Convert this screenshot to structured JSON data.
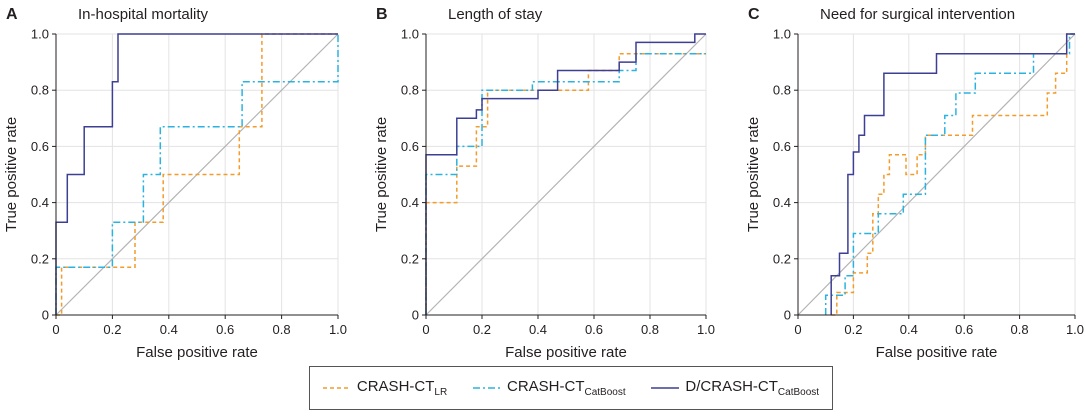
{
  "legend_text": {
    "lr_main": "CRASH-CT",
    "lr_sub": "LR",
    "cb_main": "CRASH-CT",
    "cb_sub": "CatBoost",
    "dcb_main": "D/CRASH-CT",
    "dcb_sub": "CatBoost"
  },
  "colors": {
    "lr": "#f39b2b",
    "cb": "#2bb3e0",
    "dcb": "#3c3f93",
    "diag": "#b3b3b3",
    "grid": "#e3e3e3"
  },
  "chart_data": [
    {
      "type": "line",
      "letter": "A",
      "title": "In-hospital mortality",
      "xlabel": "False positive rate",
      "ylabel": "True positive rate",
      "xlim": [
        0,
        1
      ],
      "ylim": [
        0,
        1
      ],
      "xticks": [
        "0",
        "0.2",
        "0.4",
        "0.6",
        "0.8",
        "1.0"
      ],
      "yticks": [
        "0",
        "0.2",
        "0.4",
        "0.6",
        "0.8",
        "1.0"
      ],
      "series": [
        {
          "name": "CRASH-CT LR",
          "key": "lr",
          "x": [
            0,
            0.02,
            0.02,
            0.28,
            0.28,
            0.38,
            0.38,
            0.65,
            0.65,
            0.73,
            0.73,
            1
          ],
          "y": [
            0,
            0,
            0.17,
            0.17,
            0.33,
            0.33,
            0.5,
            0.5,
            0.67,
            0.67,
            1,
            1
          ]
        },
        {
          "name": "CRASH-CT CatBoost",
          "key": "cb",
          "x": [
            0,
            0,
            0.2,
            0.2,
            0.31,
            0.31,
            0.37,
            0.37,
            0.66,
            0.66,
            1,
            1
          ],
          "y": [
            0,
            0.17,
            0.17,
            0.33,
            0.33,
            0.5,
            0.5,
            0.67,
            0.67,
            0.83,
            0.83,
            1
          ]
        },
        {
          "name": "D/CRASH-CT CatBoost",
          "key": "dcb",
          "x": [
            0,
            0,
            0.04,
            0.04,
            0.1,
            0.1,
            0.2,
            0.2,
            0.22,
            0.22,
            1
          ],
          "y": [
            0,
            0.33,
            0.33,
            0.5,
            0.5,
            0.67,
            0.67,
            0.83,
            0.83,
            1,
            1
          ]
        }
      ]
    },
    {
      "type": "line",
      "letter": "B",
      "title": "Length of stay",
      "xlabel": "False positive rate",
      "ylabel": "True positive rate",
      "xlim": [
        0,
        1
      ],
      "ylim": [
        0,
        1
      ],
      "xticks": [
        "0",
        "0.2",
        "0.4",
        "0.6",
        "0.8",
        "1.0"
      ],
      "yticks": [
        "0",
        "0.2",
        "0.4",
        "0.6",
        "0.8",
        "1.0"
      ],
      "series": [
        {
          "name": "CRASH-CT LR",
          "key": "lr",
          "x": [
            0,
            0,
            0.11,
            0.11,
            0.18,
            0.18,
            0.22,
            0.22,
            0.58,
            0.58,
            0.69,
            0.69,
            1
          ],
          "y": [
            0,
            0.4,
            0.4,
            0.53,
            0.53,
            0.67,
            0.67,
            0.8,
            0.8,
            0.87,
            0.87,
            0.93,
            0.93
          ]
        },
        {
          "name": "CRASH-CT CatBoost",
          "key": "cb",
          "x": [
            0,
            0,
            0.11,
            0.11,
            0.2,
            0.2,
            0.38,
            0.38,
            0.69,
            0.69,
            0.75,
            0.75,
            1
          ],
          "y": [
            0,
            0.5,
            0.5,
            0.6,
            0.6,
            0.8,
            0.8,
            0.83,
            0.83,
            0.87,
            0.87,
            0.93,
            0.93
          ]
        },
        {
          "name": "D/CRASH-CT CatBoost",
          "key": "dcb",
          "x": [
            0,
            0,
            0.11,
            0.11,
            0.18,
            0.18,
            0.2,
            0.2,
            0.4,
            0.4,
            0.47,
            0.47,
            0.69,
            0.69,
            0.75,
            0.75,
            0.96,
            0.96,
            1
          ],
          "y": [
            0,
            0.57,
            0.57,
            0.7,
            0.7,
            0.73,
            0.73,
            0.77,
            0.77,
            0.8,
            0.8,
            0.87,
            0.87,
            0.9,
            0.9,
            0.97,
            0.97,
            1,
            1
          ]
        }
      ]
    },
    {
      "type": "line",
      "letter": "C",
      "title": "Need for surgical intervention",
      "xlabel": "False positive rate",
      "ylabel": "True positive rate",
      "xlim": [
        0,
        1
      ],
      "ylim": [
        0,
        1
      ],
      "xticks": [
        "0",
        "0.2",
        "0.4",
        "0.6",
        "0.8",
        "1.0"
      ],
      "yticks": [
        "0",
        "0.2",
        "0.4",
        "0.6",
        "0.8",
        "1.0"
      ],
      "series": [
        {
          "name": "CRASH-CT LR",
          "key": "lr",
          "x": [
            0.12,
            0.14,
            0.14,
            0.2,
            0.2,
            0.25,
            0.25,
            0.27,
            0.27,
            0.29,
            0.29,
            0.31,
            0.31,
            0.33,
            0.33,
            0.35,
            0.35,
            0.39,
            0.39,
            0.43,
            0.43,
            0.46,
            0.46,
            0.51,
            0.51,
            0.63,
            0.63,
            0.9,
            0.9,
            0.93,
            0.93,
            0.97,
            0.97,
            1
          ],
          "y": [
            0,
            0,
            0.08,
            0.08,
            0.15,
            0.15,
            0.22,
            0.22,
            0.36,
            0.36,
            0.43,
            0.43,
            0.5,
            0.5,
            0.57,
            0.57,
            0.57,
            0.57,
            0.5,
            0.5,
            0.57,
            0.57,
            0.64,
            0.64,
            0.64,
            0.64,
            0.71,
            0.71,
            0.79,
            0.79,
            0.86,
            0.86,
            1,
            1
          ]
        },
        {
          "name": "CRASH-CT CatBoost",
          "key": "cb",
          "x": [
            0.1,
            0.1,
            0.17,
            0.17,
            0.2,
            0.2,
            0.29,
            0.29,
            0.32,
            0.32,
            0.38,
            0.38,
            0.43,
            0.43,
            0.46,
            0.46,
            0.53,
            0.53,
            0.57,
            0.57,
            0.61,
            0.61,
            0.64,
            0.64,
            0.85,
            0.85,
            0.98,
            0.98,
            1
          ],
          "y": [
            0,
            0.07,
            0.07,
            0.14,
            0.14,
            0.29,
            0.29,
            0.36,
            0.36,
            0.36,
            0.36,
            0.43,
            0.43,
            0.43,
            0.43,
            0.64,
            0.64,
            0.71,
            0.71,
            0.79,
            0.79,
            0.79,
            0.79,
            0.86,
            0.86,
            0.93,
            0.93,
            1,
            1
          ]
        },
        {
          "name": "D/CRASH-CT CatBoost",
          "key": "dcb",
          "x": [
            0.12,
            0.12,
            0.15,
            0.15,
            0.18,
            0.18,
            0.2,
            0.2,
            0.22,
            0.22,
            0.24,
            0.24,
            0.27,
            0.27,
            0.31,
            0.31,
            0.37,
            0.37,
            0.5,
            0.5,
            0.97,
            0.97,
            1
          ],
          "y": [
            0,
            0.14,
            0.14,
            0.22,
            0.22,
            0.5,
            0.5,
            0.58,
            0.58,
            0.64,
            0.64,
            0.71,
            0.71,
            0.71,
            0.71,
            0.86,
            0.86,
            0.86,
            0.86,
            0.93,
            0.93,
            1,
            1
          ]
        }
      ]
    }
  ]
}
